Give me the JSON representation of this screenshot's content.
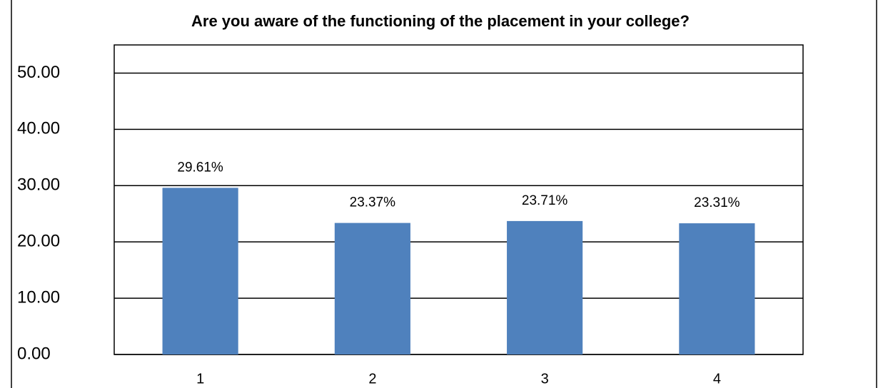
{
  "chart_data": {
    "type": "bar",
    "title": "Are you aware of the functioning of the placement in your college?",
    "categories": [
      "1",
      "2",
      "3",
      "4"
    ],
    "values": [
      29.61,
      23.37,
      23.71,
      23.31
    ],
    "value_labels": [
      "29.61%",
      "23.37%",
      "23.71%",
      "23.31%"
    ],
    "color": "#4f81bd",
    "ylim": [
      0,
      55
    ],
    "yticks": [
      {
        "value": 0,
        "label": "0.00"
      },
      {
        "value": 10,
        "label": "10.00"
      },
      {
        "value": 20,
        "label": "20.00"
      },
      {
        "value": 30,
        "label": "30.00"
      },
      {
        "value": 40,
        "label": "40.00"
      },
      {
        "value": 50,
        "label": "50.00"
      }
    ],
    "grid": true
  }
}
